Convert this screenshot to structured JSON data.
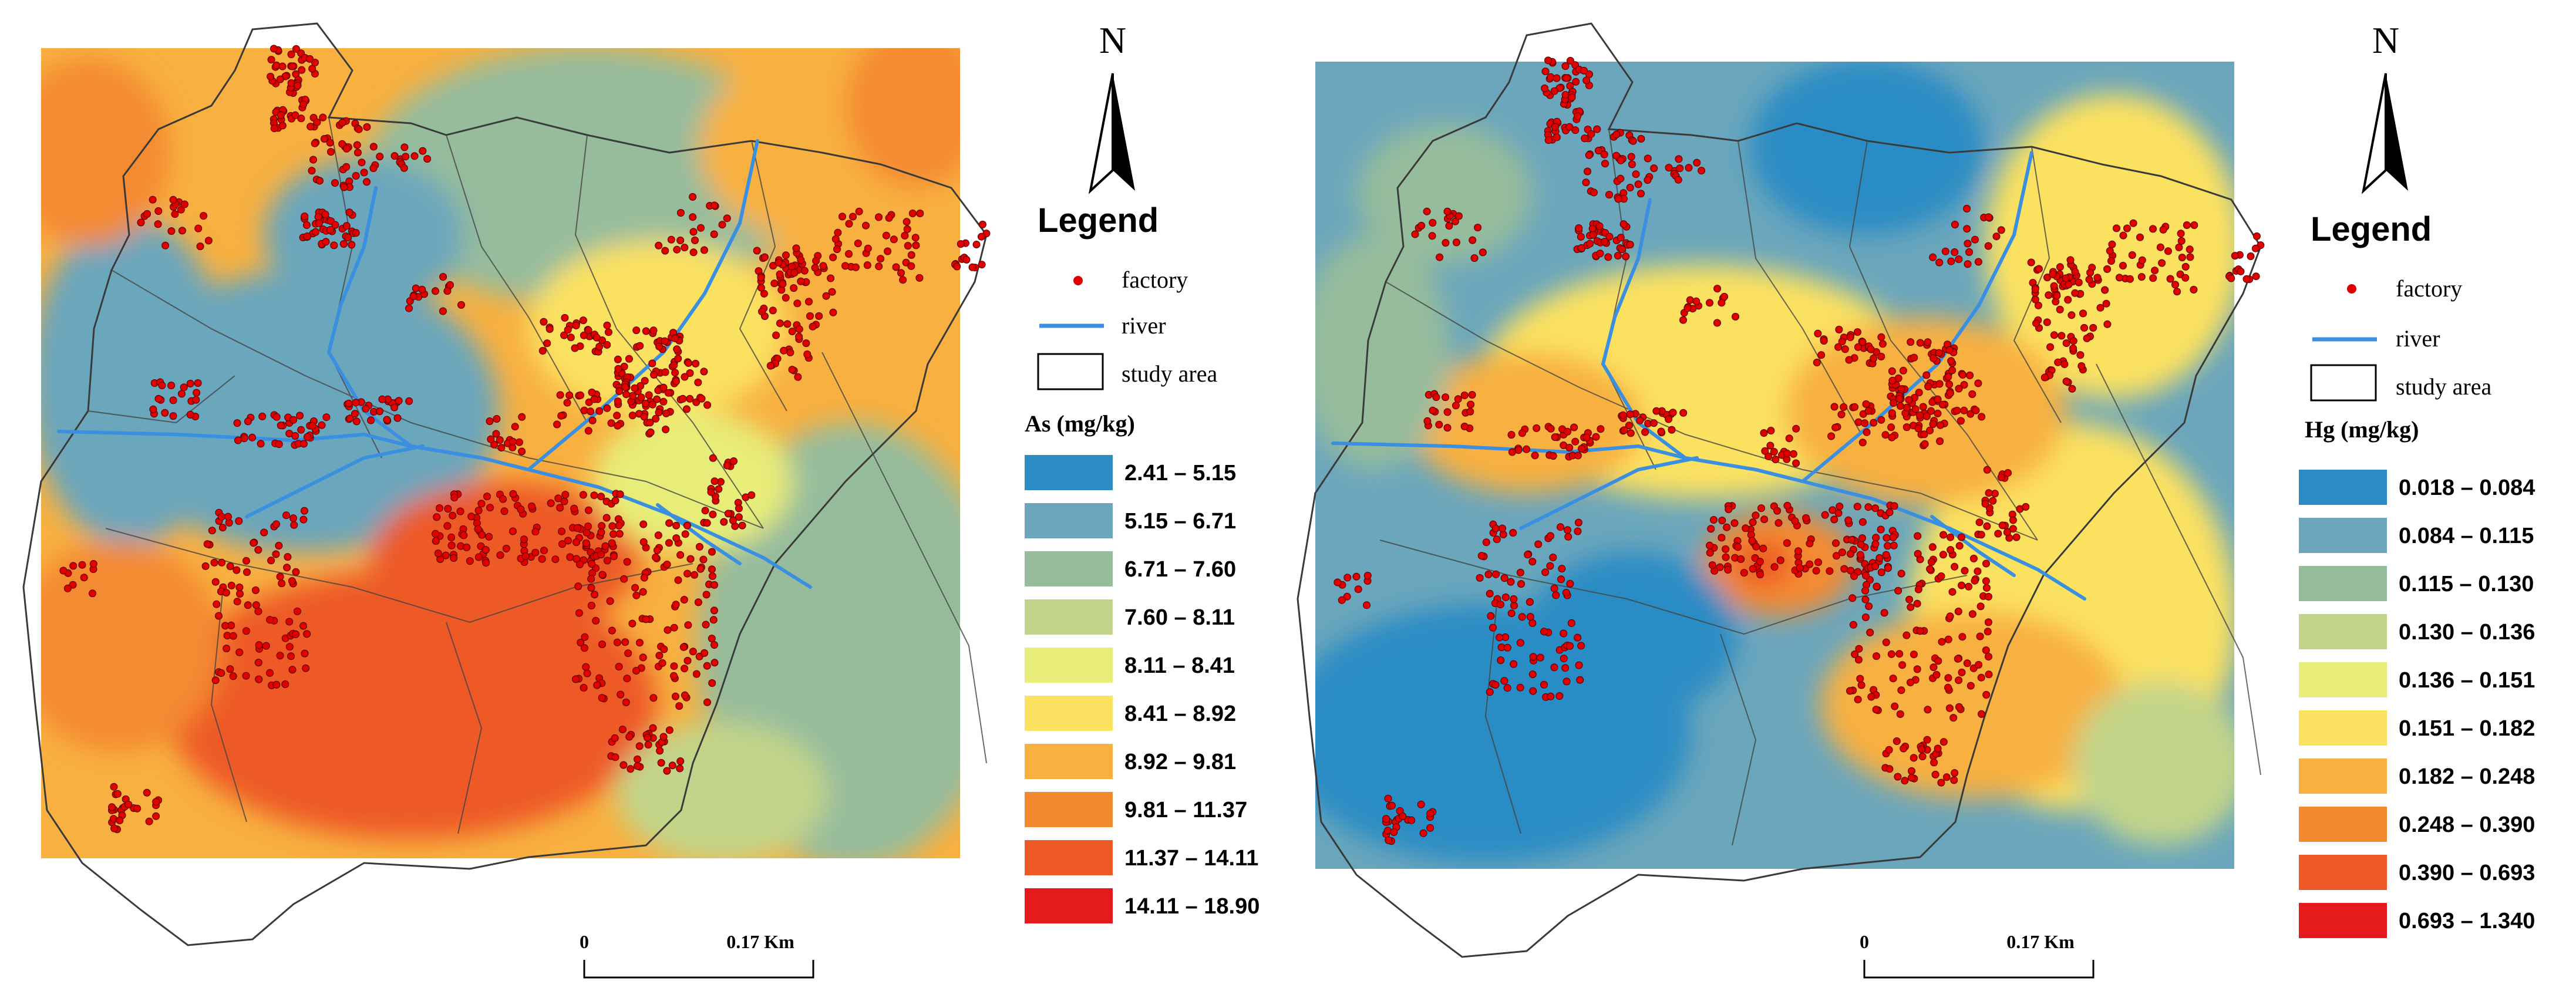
{
  "panels": [
    {
      "id": "left",
      "north_label": "N",
      "legend": {
        "title": "Legend",
        "factory_label": "factory",
        "river_label": "river",
        "study_area_label": "study area",
        "variable_title": "As (mg/kg)",
        "classes": [
          {
            "label": "2.41 – 5.15",
            "color": "#2b8cc4"
          },
          {
            "label": "5.15 – 6.71",
            "color": "#6ba6bc"
          },
          {
            "label": "6.71 – 7.60",
            "color": "#96bc9c"
          },
          {
            "label": "7.60 – 8.11",
            "color": "#c2d489"
          },
          {
            "label": "8.11 – 8.41",
            "color": "#e8ec78"
          },
          {
            "label": "8.41 – 8.92",
            "color": "#fbe160"
          },
          {
            "label": "8.92 – 9.81",
            "color": "#f8b040"
          },
          {
            "label": "9.81 – 11.37",
            "color": "#f48a30"
          },
          {
            "label": "11.37 – 14.11",
            "color": "#ed5a28"
          },
          {
            "label": "14.11 – 18.90",
            "color": "#e41a1c"
          }
        ]
      },
      "scale_bar": {
        "start_label": "0",
        "end_label": "0.17 Km"
      }
    },
    {
      "id": "right",
      "north_label": "N",
      "legend": {
        "title": "Legend",
        "factory_label": "factory",
        "river_label": "river",
        "study_area_label": "study area",
        "variable_title": "Hg  (mg/kg)",
        "classes": [
          {
            "label": "0.018 – 0.084",
            "color": "#2b8cc4"
          },
          {
            "label": "0.084 – 0.115",
            "color": "#6ba6bc"
          },
          {
            "label": "0.115 – 0.130",
            "color": "#96bc9c"
          },
          {
            "label": "0.130 – 0.136",
            "color": "#c2d489"
          },
          {
            "label": "0.136 – 0.151",
            "color": "#e8ec78"
          },
          {
            "label": "0.151 – 0.182",
            "color": "#fbe160"
          },
          {
            "label": "0.182 – 0.248",
            "color": "#f8b040"
          },
          {
            "label": "0.248 – 0.390",
            "color": "#f48a30"
          },
          {
            "label": "0.390 – 0.693",
            "color": "#ed5a28"
          },
          {
            "label": "0.693 – 1.340",
            "color": "#e41a1c"
          }
        ]
      },
      "scale_bar": {
        "start_label": "0",
        "end_label": "0.17 Km"
      }
    }
  ],
  "colors": {
    "factory": "#e00000",
    "river": "#3a8fe0",
    "boundary": "#3a3a3a"
  }
}
